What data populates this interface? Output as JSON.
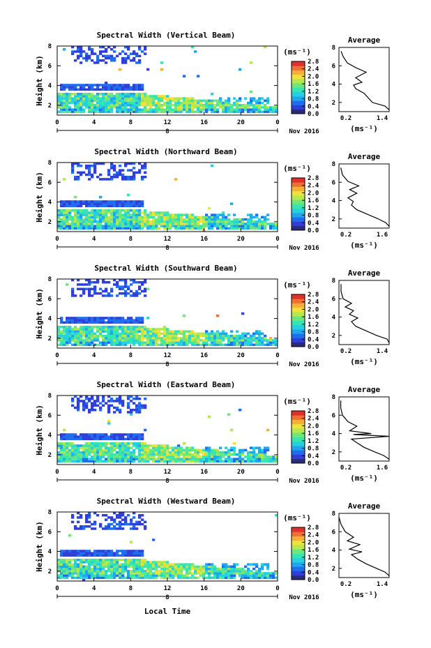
{
  "figure": {
    "x_axis_label": "Local Time",
    "date_label": "Nov 2016",
    "colorbar_unit": "(ms⁻¹)",
    "avg_unit": "(ms⁻¹)",
    "avg_title": "Average"
  },
  "colors": {
    "colormap": [
      "#2b2b7a",
      "#2f3fd8",
      "#1f6ef0",
      "#1fa7ee",
      "#25d1e0",
      "#35e6b0",
      "#6ee67a",
      "#b4e84c",
      "#f0e23a",
      "#f5b035",
      "#f07030",
      "#e0302a"
    ]
  },
  "chart_data": [
    {
      "type": "heatmap",
      "title": "Spectral Width (Vertical Beam)",
      "ylabel": "Height (km)",
      "ylim": [
        1,
        8
      ],
      "yticks": [
        "2",
        "4",
        "6",
        "8"
      ],
      "xlim": [
        0,
        24
      ],
      "xticks": [
        "0",
        "4",
        "8",
        "12",
        "16",
        "20",
        "0"
      ],
      "xsub": "8",
      "colorbar": {
        "min": 0.0,
        "max": 2.8,
        "ticks": [
          "2.8",
          "2.4",
          "2.0",
          "1.6",
          "1.2",
          "0.8",
          "0.4",
          "0.0"
        ]
      },
      "average": {
        "title": "Average",
        "xlim": [
          0.2,
          1.4
        ],
        "xticks": [
          "0.2",
          "1.4"
        ],
        "ylim": [
          1,
          8
        ],
        "yticks": [
          "2",
          "4",
          "6",
          "8"
        ],
        "profile": [
          [
            1.4,
            1.2
          ],
          [
            1.3,
            1.6
          ],
          [
            1.0,
            2.0
          ],
          [
            0.9,
            2.5
          ],
          [
            0.8,
            3.0
          ],
          [
            0.6,
            3.5
          ],
          [
            0.55,
            3.9
          ],
          [
            0.75,
            4.2
          ],
          [
            0.6,
            4.7
          ],
          [
            0.85,
            5.3
          ],
          [
            0.6,
            5.8
          ],
          [
            0.4,
            6.3
          ],
          [
            0.3,
            7.0
          ],
          [
            0.25,
            7.6
          ]
        ]
      }
    },
    {
      "type": "heatmap",
      "title": "Spectral Width (Northward Beam)",
      "ylabel": "Height (km)",
      "ylim": [
        1,
        8
      ],
      "yticks": [
        "2",
        "4",
        "6",
        "8"
      ],
      "xlim": [
        0,
        24
      ],
      "xticks": [
        "0",
        "4",
        "8",
        "12",
        "16",
        "20",
        "0"
      ],
      "xsub": "8",
      "colorbar": {
        "min": 0.0,
        "max": 2.8,
        "ticks": [
          "2.8",
          "2.4",
          "2.0",
          "1.6",
          "1.2",
          "0.8",
          "0.4",
          "0.0"
        ]
      },
      "average": {
        "title": "Average",
        "xlim": [
          0.2,
          1.6
        ],
        "xticks": [
          "0.2",
          "1.6"
        ],
        "ylim": [
          1,
          8
        ],
        "yticks": [
          "2",
          "4",
          "6",
          "8"
        ],
        "profile": [
          [
            1.6,
            1.2
          ],
          [
            1.5,
            1.6
          ],
          [
            1.3,
            2.0
          ],
          [
            1.0,
            2.5
          ],
          [
            0.7,
            3.0
          ],
          [
            0.55,
            3.5
          ],
          [
            0.6,
            3.9
          ],
          [
            0.45,
            4.3
          ],
          [
            0.7,
            4.8
          ],
          [
            0.5,
            5.2
          ],
          [
            0.75,
            5.6
          ],
          [
            0.45,
            6.1
          ],
          [
            0.3,
            6.8
          ],
          [
            0.25,
            7.6
          ]
        ]
      }
    },
    {
      "type": "heatmap",
      "title": "Spectral Width (Southward Beam)",
      "ylabel": "Height (km)",
      "ylim": [
        1,
        8
      ],
      "yticks": [
        "2",
        "4",
        "6",
        "8"
      ],
      "xlim": [
        0,
        24
      ],
      "xticks": [
        "0",
        "4",
        "8",
        "12",
        "16",
        "20",
        "0"
      ],
      "xsub": "8",
      "colorbar": {
        "min": 0.0,
        "max": 2.8,
        "ticks": [
          "2.8",
          "2.4",
          "2.0",
          "1.6",
          "1.2",
          "0.8",
          "0.4",
          "0.0"
        ]
      },
      "average": {
        "title": "Average",
        "xlim": [
          0.2,
          1.4
        ],
        "xticks": [
          "0.2",
          "1.4"
        ],
        "ylim": [
          1,
          8
        ],
        "yticks": [
          "2",
          "4",
          "6",
          "8"
        ],
        "profile": [
          [
            1.4,
            1.2
          ],
          [
            1.35,
            1.6
          ],
          [
            1.1,
            2.0
          ],
          [
            0.85,
            2.5
          ],
          [
            0.6,
            3.0
          ],
          [
            0.5,
            3.5
          ],
          [
            0.65,
            3.9
          ],
          [
            0.45,
            4.3
          ],
          [
            0.55,
            4.7
          ],
          [
            0.35,
            5.1
          ],
          [
            0.5,
            5.5
          ],
          [
            0.3,
            6.0
          ],
          [
            0.25,
            6.8
          ],
          [
            0.25,
            7.6
          ]
        ]
      }
    },
    {
      "type": "heatmap",
      "title": "Spectral Width (Eastward Beam)",
      "ylabel": "Height (km)",
      "ylim": [
        1,
        8
      ],
      "yticks": [
        "2",
        "4",
        "6",
        "8"
      ],
      "xlim": [
        0,
        24
      ],
      "xticks": [
        "0",
        "4",
        "8",
        "12",
        "16",
        "20",
        "0"
      ],
      "xsub": "8",
      "colorbar": {
        "min": 0.0,
        "max": 2.8,
        "ticks": [
          "2.8",
          "2.4",
          "2.0",
          "1.6",
          "1.2",
          "0.8",
          "0.4",
          "0.0"
        ]
      },
      "average": {
        "title": "Average",
        "xlim": [
          0.2,
          1.6
        ],
        "xticks": [
          "0.2",
          "1.6"
        ],
        "ylim": [
          1,
          8
        ],
        "yticks": [
          "2",
          "4",
          "6",
          "8"
        ],
        "profile": [
          [
            1.6,
            1.2
          ],
          [
            1.45,
            1.6
          ],
          [
            1.2,
            2.0
          ],
          [
            0.9,
            2.5
          ],
          [
            0.7,
            3.0
          ],
          [
            0.55,
            3.4
          ],
          [
            1.6,
            3.7
          ],
          [
            0.6,
            3.9
          ],
          [
            1.1,
            4.0
          ],
          [
            0.5,
            4.3
          ],
          [
            0.7,
            4.8
          ],
          [
            0.45,
            5.3
          ],
          [
            0.3,
            6.0
          ],
          [
            0.25,
            6.8
          ],
          [
            0.25,
            7.6
          ]
        ]
      }
    },
    {
      "type": "heatmap",
      "title": "Spectral Width (Westward Beam)",
      "ylabel": "Height (km)",
      "ylim": [
        1,
        8
      ],
      "yticks": [
        "2",
        "4",
        "6",
        "8"
      ],
      "xlim": [
        0,
        24
      ],
      "xticks": [
        "0",
        "4",
        "8",
        "12",
        "16",
        "20",
        "0"
      ],
      "xsub": "8",
      "colorbar": {
        "min": 0.0,
        "max": 2.8,
        "ticks": [
          "2.8",
          "2.4",
          "2.0",
          "1.6",
          "1.2",
          "0.8",
          "0.4",
          "0.0"
        ]
      },
      "average": {
        "title": "Average",
        "xlim": [
          0.2,
          1.4
        ],
        "xticks": [
          "0.2",
          "1.4"
        ],
        "ylim": [
          1,
          8
        ],
        "yticks": [
          "2",
          "4",
          "6",
          "8"
        ],
        "profile": [
          [
            1.4,
            1.2
          ],
          [
            1.3,
            1.6
          ],
          [
            1.1,
            2.0
          ],
          [
            0.85,
            2.5
          ],
          [
            0.65,
            3.0
          ],
          [
            0.5,
            3.5
          ],
          [
            0.75,
            3.8
          ],
          [
            0.45,
            4.1
          ],
          [
            0.7,
            4.6
          ],
          [
            0.4,
            5.0
          ],
          [
            0.55,
            5.4
          ],
          [
            0.35,
            6.0
          ],
          [
            0.25,
            6.8
          ],
          [
            0.2,
            7.6
          ]
        ]
      }
    }
  ]
}
